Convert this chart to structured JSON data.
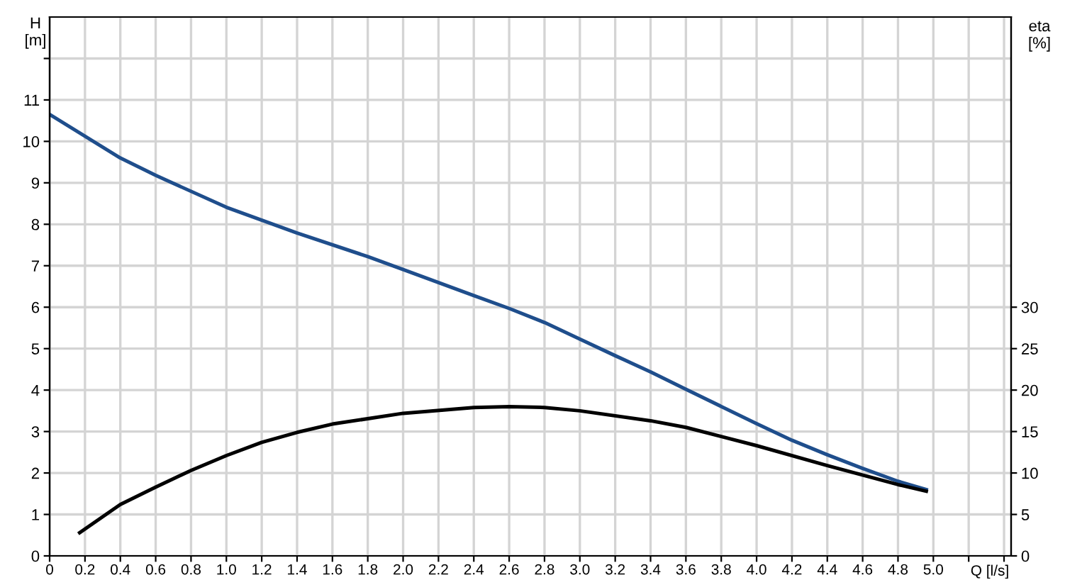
{
  "chart_data": {
    "type": "line",
    "xlabel": "Q [l/s]",
    "ylabel": "H\n[m]",
    "y2label": "eta\n[%]",
    "xlim": [
      0,
      5.44
    ],
    "ylim": [
      0,
      13
    ],
    "y2lim": [
      0,
      65
    ],
    "xticks": [
      0,
      0.2,
      0.4,
      0.6,
      0.8,
      {
        "value": 1,
        "label": "1.0"
      },
      1.2,
      1.4,
      1.6,
      1.8,
      {
        "value": 2,
        "label": "2.0"
      },
      2.2,
      2.4,
      2.6,
      2.8,
      {
        "value": 3,
        "label": "3.0"
      },
      3.2,
      3.4,
      3.6,
      3.8,
      {
        "value": 4,
        "label": "4.0"
      },
      4.2,
      4.4,
      4.6,
      4.8,
      {
        "value": 5,
        "label": "5.0"
      },
      {
        "value": 5.2,
        "label": null
      },
      {
        "value": 5.4,
        "label": null
      }
    ],
    "yticks": [
      0,
      1,
      2,
      3,
      4,
      5,
      6,
      7,
      8,
      9,
      10,
      11,
      {
        "value": 12,
        "label": null
      }
    ],
    "y2ticks": [
      0,
      5,
      10,
      15,
      20,
      25,
      30
    ],
    "grid": true,
    "marker": "none",
    "line_style": "solid",
    "legend": false,
    "series": [
      {
        "color": "#1f4e8c",
        "x": [
          0,
          0.4,
          0.6,
          1.0,
          1.4,
          1.8,
          2.0,
          2.4,
          2.6,
          2.8,
          3.0,
          3.2,
          3.4,
          3.6,
          4.0,
          4.2,
          4.4,
          4.6,
          4.8,
          4.96
        ],
        "values": [
          10.65,
          9.6,
          9.18,
          8.41,
          7.79,
          7.22,
          6.91,
          6.28,
          5.97,
          5.63,
          5.23,
          4.83,
          4.44,
          4.02,
          3.19,
          2.79,
          2.44,
          2.11,
          1.8,
          1.6
        ]
      },
      {
        "color": "#000000",
        "axis": "y2",
        "x": [
          0.17,
          0.4,
          0.6,
          0.8,
          1.0,
          1.2,
          1.4,
          1.6,
          2.0,
          2.4,
          2.6,
          2.8,
          3.0,
          3.4,
          3.6,
          3.8,
          4.0,
          4.4,
          4.8,
          4.96
        ],
        "values": [
          2.8,
          6.2,
          8.3,
          10.3,
          12.1,
          13.7,
          14.9,
          15.9,
          17.2,
          17.9,
          18.0,
          17.9,
          17.5,
          16.3,
          15.5,
          14.4,
          13.3,
          10.9,
          8.6,
          7.8
        ]
      }
    ]
  }
}
